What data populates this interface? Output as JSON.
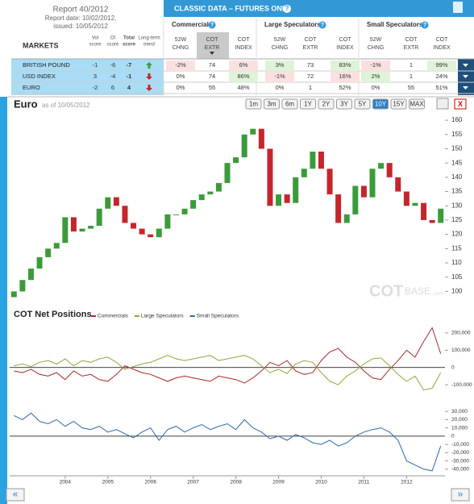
{
  "report": {
    "title": "Report 40/2012",
    "date": "Report date: 10/02/2012,",
    "issued": "issued: 10/05/2012"
  },
  "table": {
    "title": "CLASSIC DATA – FUTURES ONLY",
    "help": "?",
    "groups": [
      "Commercials",
      "Large Speculators",
      "Small Speculators"
    ],
    "markets": "MARKETS",
    "left_headers": [
      [
        "Vol",
        "score"
      ],
      [
        "OI",
        "score"
      ],
      [
        "Total",
        "score"
      ],
      [
        "Long-term",
        "trend"
      ]
    ],
    "col_headers": [
      [
        "52W",
        "CHNG"
      ],
      [
        "COT",
        "EXTR"
      ],
      [
        "COT",
        "INDEX"
      ]
    ],
    "rows": [
      {
        "market": "BRITISH POUND",
        "scores": [
          -1,
          -6,
          -7
        ],
        "trend": "up",
        "cells": [
          "-2%",
          "74",
          "6%",
          "3%",
          "73",
          "83%",
          "-1%",
          "1",
          "99%"
        ]
      },
      {
        "market": "USD INDEX",
        "scores": [
          3,
          -4,
          -1
        ],
        "trend": "down",
        "cells": [
          "0%",
          "74",
          "86%",
          "-1%",
          "72",
          "16%",
          "2%",
          "1",
          "24%"
        ]
      },
      {
        "market": "EURO",
        "scores": [
          -2,
          6,
          4
        ],
        "trend": "down",
        "cells": [
          "0%",
          "55",
          "48%",
          "0%",
          "1",
          "52%",
          "0%",
          "55",
          "51%"
        ]
      }
    ]
  },
  "chart_data": [
    {
      "type": "candlestick",
      "title": "Euro",
      "subtitle": "as of 10/05/2012",
      "ranges": [
        "1m",
        "3m",
        "6m",
        "1Y",
        "2Y",
        "3Y",
        "5Y",
        "10Y",
        "15Y",
        "MAX"
      ],
      "active_range": "10Y",
      "close_label": "X",
      "watermark": [
        "COT",
        "BASE",
        ".com"
      ],
      "x": [
        2002.8,
        2003,
        2003.2,
        2003.4,
        2003.6,
        2003.8,
        2004,
        2004.2,
        2004.4,
        2004.6,
        2004.8,
        2005,
        2005.2,
        2005.4,
        2005.6,
        2005.8,
        2006,
        2006.2,
        2006.4,
        2006.6,
        2006.8,
        2007,
        2007.2,
        2007.4,
        2007.6,
        2007.8,
        2008,
        2008.2,
        2008.4,
        2008.6,
        2008.8,
        2009,
        2009.2,
        2009.4,
        2009.6,
        2009.8,
        2010,
        2010.2,
        2010.4,
        2010.6,
        2010.8,
        2011,
        2011.2,
        2011.4,
        2011.6,
        2011.8,
        2012,
        2012.2,
        2012.4,
        2012.6,
        2012.8
      ],
      "open": [
        98,
        100,
        104,
        108,
        112,
        115,
        117,
        126,
        121,
        122,
        123,
        129,
        133,
        130,
        124,
        122,
        120,
        119,
        122,
        127,
        127,
        129,
        132,
        134,
        135,
        138,
        145,
        147,
        155,
        157,
        150,
        130,
        134,
        131,
        140,
        143,
        149,
        143,
        134,
        124,
        127,
        137,
        133,
        143,
        145,
        140,
        135,
        130,
        131,
        125,
        124
      ],
      "close": [
        100,
        104,
        108,
        112,
        115,
        117,
        126,
        121,
        122,
        123,
        129,
        133,
        130,
        124,
        122,
        120,
        119,
        122,
        127,
        127,
        129,
        132,
        134,
        135,
        138,
        145,
        147,
        155,
        157,
        150,
        130,
        134,
        131,
        140,
        143,
        149,
        143,
        134,
        124,
        127,
        137,
        133,
        143,
        145,
        140,
        135,
        130,
        131,
        125,
        124,
        129
      ],
      "up_color": "#3b9b3b",
      "down_color": "#c4262c",
      "xlim": [
        2002.7,
        2012.9
      ],
      "ylim": [
        97,
        162
      ],
      "yticks": [
        100,
        105,
        110,
        115,
        120,
        125,
        130,
        135,
        140,
        145,
        150,
        155,
        160
      ]
    },
    {
      "type": "line",
      "title": "COT Net Positions",
      "x": [
        2002.8,
        2003,
        2003.2,
        2003.4,
        2003.6,
        2003.8,
        2004,
        2004.2,
        2004.4,
        2004.6,
        2004.8,
        2005,
        2005.2,
        2005.4,
        2005.6,
        2005.8,
        2006,
        2006.2,
        2006.4,
        2006.6,
        2006.8,
        2007,
        2007.2,
        2007.4,
        2007.6,
        2007.8,
        2008,
        2008.2,
        2008.4,
        2008.6,
        2008.8,
        2009,
        2009.2,
        2009.4,
        2009.6,
        2009.8,
        2010,
        2010.2,
        2010.4,
        2010.6,
        2010.8,
        2011,
        2011.2,
        2011.4,
        2011.6,
        2011.8,
        2012,
        2012.2,
        2012.4,
        2012.6,
        2012.8
      ],
      "xlim": [
        2002.7,
        2012.9
      ],
      "xticks": [
        2004,
        2005,
        2006,
        2007,
        2008,
        2009,
        2010,
        2011,
        2012
      ],
      "ylim": [
        -160000,
        260000
      ],
      "yticks": [
        {
          "value": 200000,
          "label": "200,000"
        },
        {
          "value": 100000,
          "label": "100,000"
        },
        0,
        {
          "value": -100000,
          "label": "-100,000"
        }
      ],
      "y2lim": [
        -47000,
        37000
      ],
      "y2ticks": [
        {
          "value": 30000,
          "label": "30,000"
        },
        {
          "value": 20000,
          "label": "20,000"
        },
        {
          "value": 10000,
          "label": "10,000"
        },
        0,
        {
          "value": -10000,
          "label": "-10,000"
        },
        {
          "value": -20000,
          "label": "-20,000"
        },
        {
          "value": -30000,
          "label": "-30,000"
        },
        {
          "value": -40000,
          "label": "-40,000"
        }
      ],
      "series": [
        {
          "name": "Commercials",
          "color": "#a8282b",
          "values": [
            -20000,
            -30000,
            -10000,
            -40000,
            -50000,
            -30000,
            -70000,
            -20000,
            -50000,
            -40000,
            -70000,
            -80000,
            -40000,
            10000,
            -10000,
            -30000,
            -40000,
            -60000,
            -80000,
            -60000,
            -50000,
            -60000,
            -70000,
            -80000,
            -50000,
            -60000,
            -70000,
            -90000,
            -60000,
            -20000,
            30000,
            10000,
            40000,
            -20000,
            -40000,
            -30000,
            40000,
            90000,
            110000,
            60000,
            30000,
            -20000,
            -60000,
            -70000,
            -10000,
            40000,
            100000,
            60000,
            150000,
            230000,
            80000
          ]
        },
        {
          "name": "Large Speculators",
          "color": "#8fa83a",
          "values": [
            10000,
            20000,
            5000,
            30000,
            40000,
            20000,
            50000,
            10000,
            40000,
            30000,
            50000,
            60000,
            30000,
            -10000,
            5000,
            20000,
            30000,
            50000,
            70000,
            50000,
            40000,
            50000,
            60000,
            70000,
            40000,
            50000,
            60000,
            70000,
            50000,
            10000,
            -30000,
            -10000,
            -35000,
            20000,
            40000,
            30000,
            -30000,
            -80000,
            -100000,
            -50000,
            -20000,
            20000,
            50000,
            55000,
            10000,
            -40000,
            -80000,
            -50000,
            -130000,
            -120000,
            -30000
          ]
        },
        {
          "name": "Small Speculators",
          "color": "#2f66ad",
          "axis": "y2",
          "values": [
            25000,
            20000,
            28000,
            18000,
            15000,
            20000,
            12000,
            18000,
            10000,
            8000,
            12000,
            5000,
            8000,
            3000,
            -2000,
            5000,
            10000,
            -5000,
            8000,
            12000,
            5000,
            10000,
            14000,
            8000,
            12000,
            15000,
            8000,
            20000,
            10000,
            5000,
            -3000,
            0,
            -5000,
            2000,
            -2000,
            -8000,
            -10000,
            -5000,
            -12000,
            -8000,
            0,
            5000,
            8000,
            10000,
            5000,
            -5000,
            -30000,
            -35000,
            -40000,
            -42000,
            -12000
          ]
        }
      ]
    }
  ],
  "nav": [
    "«",
    "»"
  ]
}
